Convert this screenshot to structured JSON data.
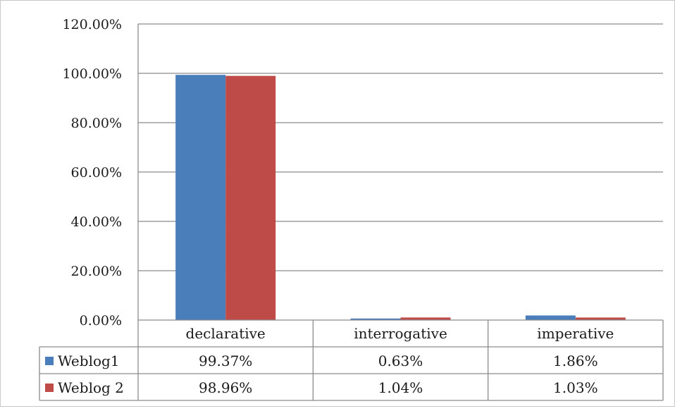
{
  "chart_data": {
    "type": "bar",
    "categories": [
      "declarative",
      "interrogative",
      "imperative"
    ],
    "series": [
      {
        "name": "Weblog1",
        "values": [
          99.37,
          0.63,
          1.86
        ],
        "labels": [
          "99.37%",
          "0.63%",
          "1.86%"
        ],
        "color": "#4a7ebb"
      },
      {
        "name": "Weblog 2",
        "values": [
          98.96,
          1.04,
          1.03
        ],
        "labels": [
          "98.96%",
          "1.04%",
          "1.03%"
        ],
        "color": "#be4b48"
      }
    ],
    "ylim": [
      0,
      120
    ],
    "yticks": [
      0,
      20,
      40,
      60,
      80,
      100,
      120
    ],
    "ytick_labels": [
      "0.00%",
      "20.00%",
      "40.00%",
      "60.00%",
      "80.00%",
      "100.00%",
      "120.00%"
    ],
    "grid": true,
    "legend": "data-table-left",
    "gridline_color": "#8c8c8c"
  }
}
